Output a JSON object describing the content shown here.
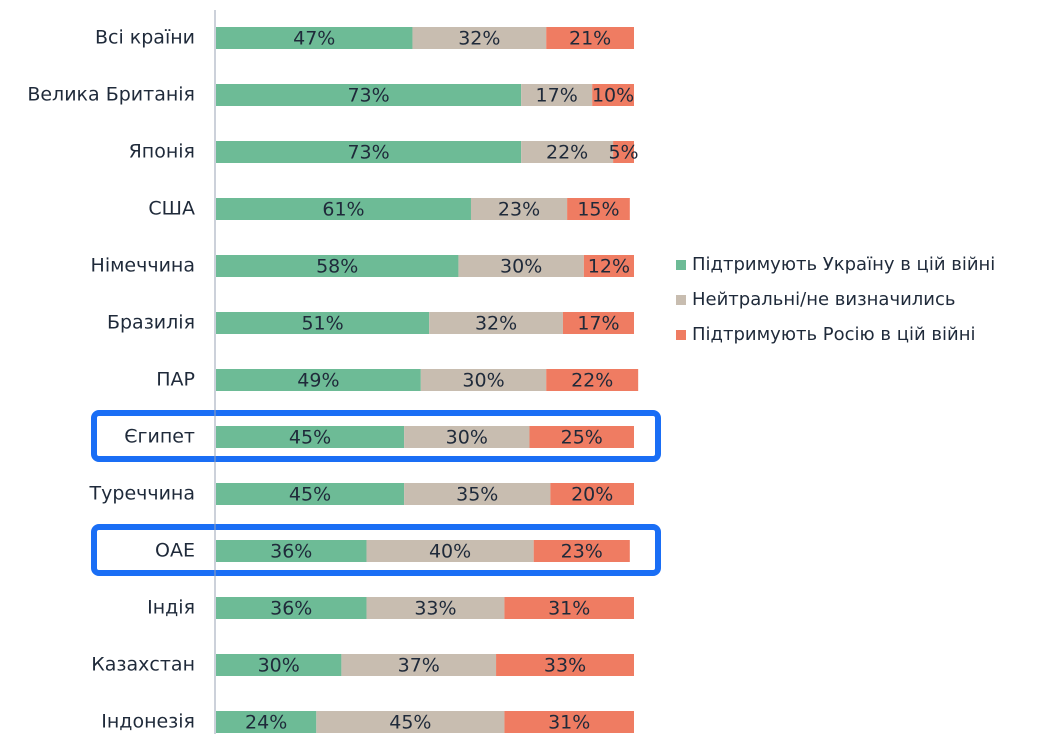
{
  "chart_data": {
    "type": "stacked_bar_horizontal",
    "categories": [
      "Всі країни",
      "Велика Британія",
      "Японія",
      "США",
      "Німеччина",
      "Бразилія",
      "ПАР",
      "Єгипет",
      "Туреччина",
      "ОАЕ",
      "Індія",
      "Казахстан",
      "Індонезія"
    ],
    "series": [
      {
        "name": "Підтримують Україну в цій війні",
        "color": "#6dbb96",
        "values": [
          47,
          73,
          73,
          61,
          58,
          51,
          49,
          45,
          45,
          36,
          36,
          30,
          24
        ],
        "value_labels": [
          "47%",
          "73%",
          "73%",
          "61%",
          "58%",
          "51%",
          "49%",
          "45%",
          "45%",
          "36%",
          "36%",
          "30%",
          "24%"
        ]
      },
      {
        "name": "Нейтральні/не визначились",
        "color": "#c8bdb0",
        "values": [
          32,
          17,
          22,
          23,
          30,
          32,
          30,
          30,
          35,
          40,
          33,
          37,
          45
        ],
        "value_labels": [
          "32%",
          "17%",
          "22%",
          "23%",
          "30%",
          "32%",
          "30%",
          "30%",
          "35%",
          "40%",
          "33%",
          "37%",
          "45%"
        ]
      },
      {
        "name": "Підтримують Росію в цій війні",
        "color": "#ef7c62",
        "values": [
          21,
          10,
          5,
          15,
          12,
          17,
          22,
          25,
          20,
          23,
          31,
          33,
          31
        ],
        "value_labels": [
          "21%",
          "10%",
          "5%",
          "15%",
          "12%",
          "17%",
          "22%",
          "25%",
          "20%",
          "23%",
          "31%",
          "33%",
          "31%"
        ]
      }
    ],
    "xlim": [
      0,
      100
    ],
    "legend": "right"
  }
}
